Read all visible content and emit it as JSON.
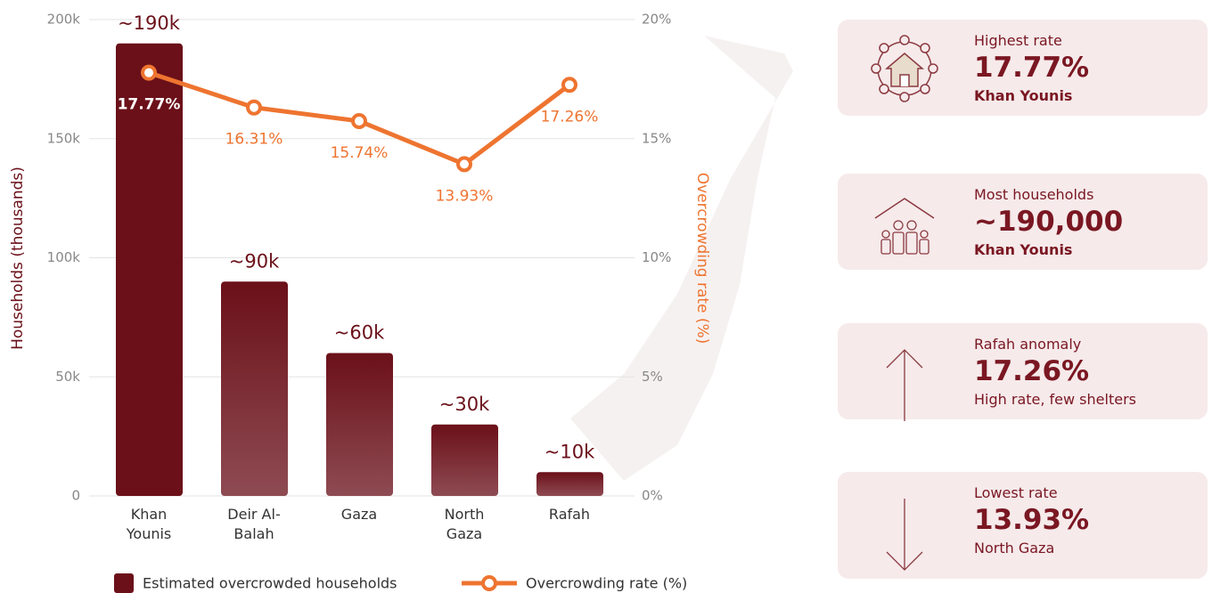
{
  "chart_data": {
    "type": "bar_line",
    "categories": [
      "Khan Younis",
      "Deir Al-Balah",
      "Gaza",
      "North Gaza",
      "Rafah"
    ],
    "series": [
      {
        "name": "Estimated overcrowded households",
        "color": "#6b1019",
        "type": "bar",
        "values": [
          190000,
          90000,
          60000,
          30000,
          10000
        ],
        "value_labels": [
          "~190k",
          "~90k",
          "~60k",
          "~30k",
          "~10k"
        ]
      },
      {
        "name": "Overcrowding rate (%)",
        "color": "#ee7430",
        "type": "line",
        "axis": "y2",
        "values": [
          17.77,
          16.31,
          15.74,
          13.93,
          17.26
        ],
        "value_labels": [
          "17.77%",
          "16.31%",
          "15.74%",
          "13.93%",
          "17.26%"
        ]
      }
    ],
    "y_label": "Households (thousands)",
    "y2_label": "Overcrowding rate (%)",
    "ylim": [
      0,
      200000
    ],
    "yticks": [
      0,
      {
        "value": 50000,
        "label": "50k"
      },
      {
        "value": 100000,
        "label": "100k"
      },
      {
        "value": 150000,
        "label": "150k"
      },
      {
        "value": 200000,
        "label": "200k"
      }
    ],
    "y2lim": [
      0,
      20
    ],
    "y2ticks": [
      {
        "value": 0,
        "label": "0%"
      },
      {
        "value": 5,
        "label": "5%"
      },
      {
        "value": 10,
        "label": "10%"
      },
      {
        "value": 15,
        "label": "15%"
      },
      {
        "value": 20,
        "label": "20%"
      }
    ],
    "grid": true
  },
  "cards": [
    {
      "label": "Highest rate",
      "value": "17.77%",
      "note": "Khan Younis"
    },
    {
      "label": "Most households",
      "value": "~190,000",
      "note": "Khan Younis"
    },
    {
      "label": "Rafah anomaly",
      "value": "17.26%",
      "note": "High rate, few shelters"
    },
    {
      "label": "Lowest rate",
      "value": "13.93%",
      "note": "North Gaza"
    }
  ]
}
